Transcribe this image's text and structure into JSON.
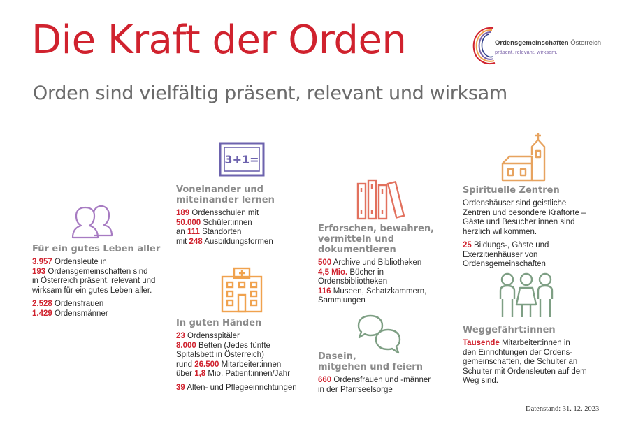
{
  "title": "Die Kraft der Orden",
  "subtitle": "Orden sind vielfältig präsent, relevant und wirksam",
  "logo": {
    "name_bold": "Ordensgemeinschaften",
    "name_rest": " Österreich",
    "tagline": "präsent. relevant. wirksam."
  },
  "colors": {
    "accent": "#d0222e",
    "purple": "#a77bc2",
    "orange": "#f0a24e",
    "coral": "#e2715e",
    "green": "#7e9f84",
    "violet": "#6d63ae",
    "tan": "#e7a35f"
  },
  "icons": {
    "people": "two-people-icon",
    "board": "chalkboard-icon",
    "hospital": "hospital-icon",
    "books": "books-icon",
    "chat": "speech-bubbles-icon",
    "church": "church-icon",
    "companions": "three-people-icon",
    "board_text": "3+1="
  },
  "leben": {
    "heading": "Für ein gutes Leben aller",
    "l1_num": "3.957",
    "l1_text": " Ordensleute in",
    "l2_num": "193",
    "l2_text": " Ordensgemeinschaften sind",
    "l3": "in Österreich präsent, relevant und",
    "l4": "wirksam für ein gutes Leben aller.",
    "f_num": "2.528",
    "f_text": " Ordensfrauen",
    "m_num": "1.429",
    "m_text": " Ordensmänner"
  },
  "lernen": {
    "heading_1": "Voneinander und",
    "heading_2": "miteinander lernen",
    "l1_num": "189",
    "l1_text": " Ordensschulen mit",
    "l2_num": "50.000",
    "l2_text": " Schüler:innen",
    "l3_pre": "an ",
    "l3_num": "111",
    "l3_text": " Standorten",
    "l4_pre": "mit ",
    "l4_num": "248",
    "l4_text": " Ausbildungsformen"
  },
  "haende": {
    "heading": "In guten Händen",
    "l1_num": "23",
    "l1_text": " Ordensspitäler",
    "l2_num": "8.000",
    "l2_text": " Betten (Jedes fünfte",
    "l3": "Spitalsbett in Österreich)",
    "l4_pre": "rund ",
    "l4_num": "26.500",
    "l4_text": " Mitarbeiter:innen",
    "l5_pre": "über ",
    "l5_num": "1,8",
    "l5_text": " Mio. Patient:innen/Jahr",
    "l6_num": "39",
    "l6_text": " Alten- und Pflegeeinrichtungen"
  },
  "forschen": {
    "heading_1": "Erforschen, bewahren,",
    "heading_2": "vermitteln und",
    "heading_3": "dokumentieren",
    "l1_num": "500",
    "l1_text": " Archive und Bibliotheken",
    "l2_num": "4,5 Mio.",
    "l2_text": " Bücher in",
    "l3": "Ordensbibliotheken",
    "l4_num": "116",
    "l4_text": " Museen, Schatzkammern,",
    "l5": "Sammlungen"
  },
  "dasein": {
    "heading_1": "Dasein,",
    "heading_2": "mitgehen und feiern",
    "l1_num": "660",
    "l1_text": " Ordensfrauen und -männer",
    "l2": "in der Pfarrseelsorge"
  },
  "spirit": {
    "heading": "Spirituelle Zentren",
    "l1": "Ordenshäuser sind geistliche",
    "l2": "Zentren und besondere Kraftorte –",
    "l3": "Gäste und Besucher:innen sind",
    "l4": "herzlich willkommen.",
    "l5_num": "25",
    "l5_text": " Bildungs-, Gäste und",
    "l6": "Exerzitienhäuser von",
    "l7": "Ordensgemeinschaften"
  },
  "weg": {
    "heading": "Weggefährt:innen",
    "l1_num": "Tausende",
    "l1_text": " Mitarbeiter:innen in",
    "l2": "den Einrichtungen der Ordens-",
    "l3": "gemeinschaften, die Schulter an",
    "l4": "Schulter mit Ordensleuten auf dem",
    "l5": "Weg sind."
  },
  "footer": "Datenstand: 31. 12. 2023"
}
